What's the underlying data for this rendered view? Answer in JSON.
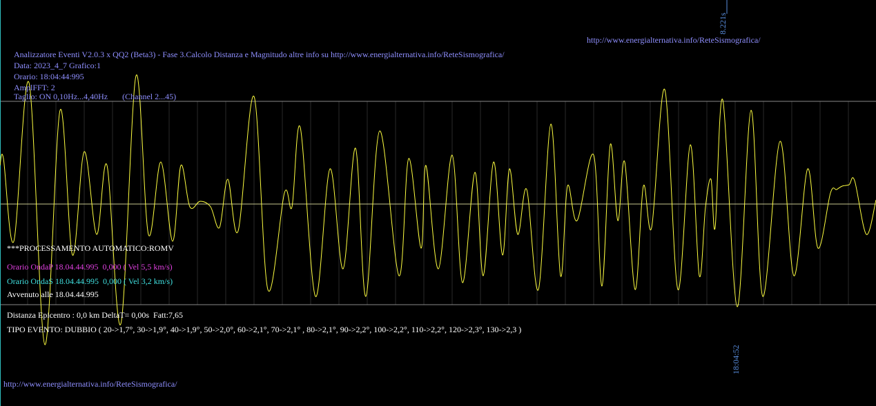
{
  "top_url": "http://www.energialternativa.info/ReteSismografica/",
  "top_time_marker": "8.221s",
  "header": {
    "lines": [
      "Analizzatore Eventi V2.0.3 x QQ2 (Beta3) - Fase 3.Calcolo Distanza e Magnitudo altre info su http://www.energialternativa.info/ReteSismografica/",
      "Data: 2023_4_7 Grafico:1",
      "Orario: 18:04:44:995",
      "AmplFFT: 2",
      "Taglio: ON 0,10Hz...4,40Hz       (Channel 2...45)"
    ]
  },
  "processing": {
    "title": "***PROCESSAMENTO AUTOMATICO:ROMV",
    "wave_p": "Orario OndaP 18.04.44.995  0,000 ( Vel 5,5 km/s)",
    "wave_s": "Orario OndaS 18.04.44.995  0,000 ( Vel 3,2 km/s)",
    "occurred": "Avvenuto alle 18.04.44.995",
    "distance": "Distanza Epicentro : 0,0 km DeltaT= 0,00s  Fatt:7,65",
    "event_type": "TIPO EVENTO: DUBBIO ( 20->1,7°, 30->1,9°, 40->1,9°, 50->2,0°, 60->2,1°, 70->2,1° , 80->2,1°, 90->2,2°, 100->2,2°, 110->2,2°, 120->2,3°, 130->2,3 )"
  },
  "bottom_time_marker": "18:04:52",
  "footer_url": "http://www.energialternativa.info/ReteSismografica/"
}
